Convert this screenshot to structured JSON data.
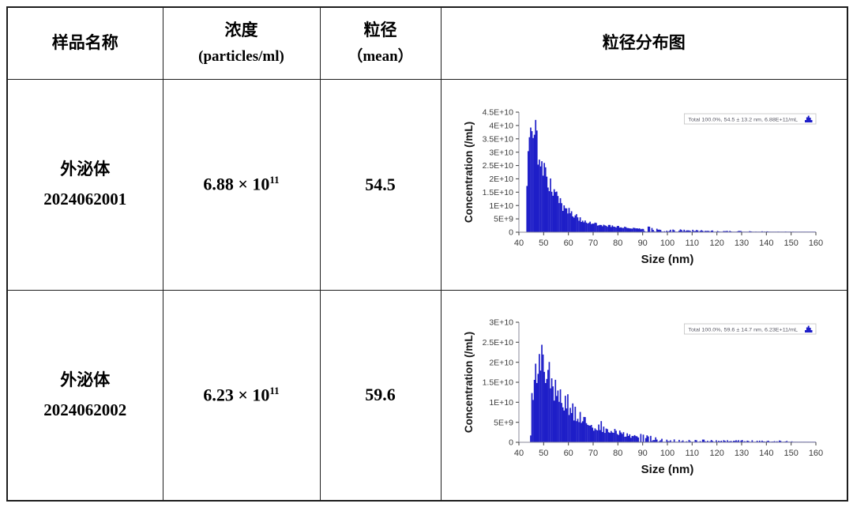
{
  "colors": {
    "bar_blue": "#1e1ec8",
    "axis_line": "#8a8a99",
    "tick_text": "#3c3c3c",
    "axis_label_text": "#141414",
    "legend_border": "#c2c2c2",
    "legend_text": "#5a5a66",
    "table_border": "#1d1d1d"
  },
  "table": {
    "headers": {
      "sample": "样品名称",
      "conc_line1": "浓度",
      "conc_line2": "(particles/ml)",
      "size_line1": "粒径",
      "size_line2": "（mean）",
      "chart": "粒径分布图"
    },
    "rows": [
      {
        "name_line1": "外泌体",
        "name_line2": "2024062001",
        "conc_base": "6.88 × 10",
        "conc_exp": "11",
        "mean": "54.5"
      },
      {
        "name_line1": "外泌体",
        "name_line2": "2024062002",
        "conc_base": "6.23 × 10",
        "conc_exp": "11",
        "mean": "59.6"
      }
    ]
  },
  "chart_data": [
    {
      "type": "bar",
      "title": "",
      "xlabel": "Size (nm)",
      "ylabel": "Concentration (/mL)",
      "legend": "Total  100.0%,  54.5 ± 13.2 nm,  6.88E+11/mL",
      "legend_position": "top-right",
      "grid": false,
      "xlim": [
        40,
        160
      ],
      "ymax_e9": 45,
      "x_ticks": [
        40,
        50,
        60,
        70,
        80,
        90,
        100,
        110,
        120,
        130,
        140,
        150,
        160
      ],
      "y_ticks": [
        [
          0,
          "0"
        ],
        [
          5,
          "5E+9"
        ],
        [
          10,
          "1E+10"
        ],
        [
          15,
          "1.5E+10"
        ],
        [
          20,
          "2E+10"
        ],
        [
          25,
          "2.5E+10"
        ],
        [
          30,
          "3E+10"
        ],
        [
          35,
          "3.5E+10"
        ],
        [
          40,
          "4E+10"
        ],
        [
          45,
          "4.5E+10"
        ]
      ],
      "bin_nm": 0.5,
      "noise": 0.2,
      "seed": 1301,
      "peak_nm": 45.5,
      "peak_conc_e9": 41.5,
      "envelope_e9": [
        [
          43.0,
          0
        ],
        [
          43.3,
          19
        ],
        [
          43.7,
          30
        ],
        [
          44.1,
          33.5
        ],
        [
          44.5,
          35.5
        ],
        [
          45.0,
          36.5
        ],
        [
          45.4,
          41.5
        ],
        [
          45.8,
          39
        ],
        [
          46.2,
          37
        ],
        [
          46.8,
          35
        ],
        [
          47.3,
          33
        ],
        [
          47.8,
          31
        ],
        [
          48.3,
          29
        ],
        [
          48.8,
          27
        ],
        [
          49.3,
          25.5
        ],
        [
          50,
          23.5
        ],
        [
          50.7,
          21.5
        ],
        [
          51.5,
          19.5
        ],
        [
          52.3,
          18
        ],
        [
          53,
          16.5
        ],
        [
          54,
          14.8
        ],
        [
          55,
          13.2
        ],
        [
          56,
          11.8
        ],
        [
          57,
          10.6
        ],
        [
          58,
          9.6
        ],
        [
          59,
          8.7
        ],
        [
          60,
          7.9
        ],
        [
          61,
          7.1
        ],
        [
          62,
          6.4
        ],
        [
          63,
          5.8
        ],
        [
          64,
          5.3
        ],
        [
          65,
          4.9
        ],
        [
          66,
          4.5
        ],
        [
          67,
          4.2
        ],
        [
          68,
          3.9
        ],
        [
          69,
          3.6
        ],
        [
          70,
          3.4
        ],
        [
          72,
          3.0
        ],
        [
          74,
          2.7
        ],
        [
          76,
          2.4
        ],
        [
          78,
          2.2
        ],
        [
          80,
          2.0
        ],
        [
          82,
          1.8
        ],
        [
          85,
          1.55
        ],
        [
          88,
          1.35
        ],
        [
          91,
          1.15
        ],
        [
          94,
          1.0
        ],
        [
          97,
          0.85
        ],
        [
          100,
          0.75
        ],
        [
          104,
          0.6
        ],
        [
          108,
          0.5
        ],
        [
          112,
          0.42
        ],
        [
          116,
          0.36
        ],
        [
          120,
          0.32
        ],
        [
          125,
          0.27
        ],
        [
          130,
          0.23
        ],
        [
          135,
          0.2
        ],
        [
          140,
          0.17
        ],
        [
          145,
          0.14
        ],
        [
          150,
          0.12
        ],
        [
          155,
          0.09
        ],
        [
          160,
          0.06
        ]
      ]
    },
    {
      "type": "bar",
      "title": "",
      "xlabel": "Size (nm)",
      "ylabel": "Concentration (/mL)",
      "legend": "Total  100.0%,  59.6 ± 14.7 nm,  6.23E+11/mL",
      "legend_position": "top-right",
      "grid": false,
      "xlim": [
        40,
        160
      ],
      "ymax_e9": 30,
      "x_ticks": [
        40,
        50,
        60,
        70,
        80,
        90,
        100,
        110,
        120,
        130,
        140,
        150,
        160
      ],
      "y_ticks": [
        [
          0,
          "0"
        ],
        [
          5,
          "5E+9"
        ],
        [
          10,
          "1E+10"
        ],
        [
          15,
          "1.5E+10"
        ],
        [
          20,
          "2E+10"
        ],
        [
          25,
          "2.5E+10"
        ],
        [
          30,
          "3E+10"
        ]
      ],
      "bin_nm": 0.5,
      "noise": 0.3,
      "seed": 2688,
      "peak_nm": 50,
      "peak_conc_e9": 25.2,
      "envelope_e9": [
        [
          44.7,
          0
        ],
        [
          45.0,
          9.5
        ],
        [
          45.5,
          10.5
        ],
        [
          46.0,
          12
        ],
        [
          46.5,
          14
        ],
        [
          47.0,
          16.5
        ],
        [
          47.5,
          19.5
        ],
        [
          47.9,
          23.5
        ],
        [
          48.3,
          21
        ],
        [
          48.7,
          19.5
        ],
        [
          49.2,
          20
        ],
        [
          49.6,
          21.5
        ],
        [
          50.0,
          25.2
        ],
        [
          50.4,
          21.5
        ],
        [
          50.9,
          20.5
        ],
        [
          51.4,
          19.5
        ],
        [
          52,
          18
        ],
        [
          52.6,
          16.8
        ],
        [
          53.2,
          16
        ],
        [
          54,
          14.5
        ],
        [
          55,
          13
        ],
        [
          55.8,
          13.8
        ],
        [
          56.4,
          12
        ],
        [
          57,
          11.2
        ],
        [
          58,
          10.2
        ],
        [
          59,
          9.4
        ],
        [
          60,
          10
        ],
        [
          60.6,
          8.8
        ],
        [
          61.4,
          8.2
        ],
        [
          62.2,
          7.4
        ],
        [
          63,
          6.6
        ],
        [
          64,
          6.9
        ],
        [
          65,
          6.2
        ],
        [
          66,
          5.6
        ],
        [
          67,
          5.1
        ],
        [
          68,
          4.7
        ],
        [
          69,
          4.3
        ],
        [
          70,
          4.0
        ],
        [
          71,
          3.7
        ],
        [
          72,
          3.5
        ],
        [
          73,
          4.6
        ],
        [
          73.6,
          3.6
        ],
        [
          74.5,
          3.3
        ],
        [
          75.5,
          3.0
        ],
        [
          76.5,
          3.3
        ],
        [
          77.5,
          2.8
        ],
        [
          78.5,
          2.6
        ],
        [
          80,
          2.6
        ],
        [
          81,
          2.2
        ],
        [
          82.5,
          2.0
        ],
        [
          84,
          1.75
        ],
        [
          86,
          1.5
        ],
        [
          88,
          1.25
        ],
        [
          90,
          1.05
        ],
        [
          92,
          0.9
        ],
        [
          95,
          0.72
        ],
        [
          98,
          0.6
        ],
        [
          101,
          0.52
        ],
        [
          105,
          0.45
        ],
        [
          110,
          0.4
        ],
        [
          115,
          0.35
        ],
        [
          120,
          0.3
        ],
        [
          125,
          0.28
        ],
        [
          130,
          0.32
        ],
        [
          135,
          0.26
        ],
        [
          140,
          0.22
        ],
        [
          144,
          0.25
        ],
        [
          148,
          0.18
        ],
        [
          152,
          0.12
        ],
        [
          155,
          0.05
        ],
        [
          160,
          0.03
        ]
      ]
    }
  ]
}
